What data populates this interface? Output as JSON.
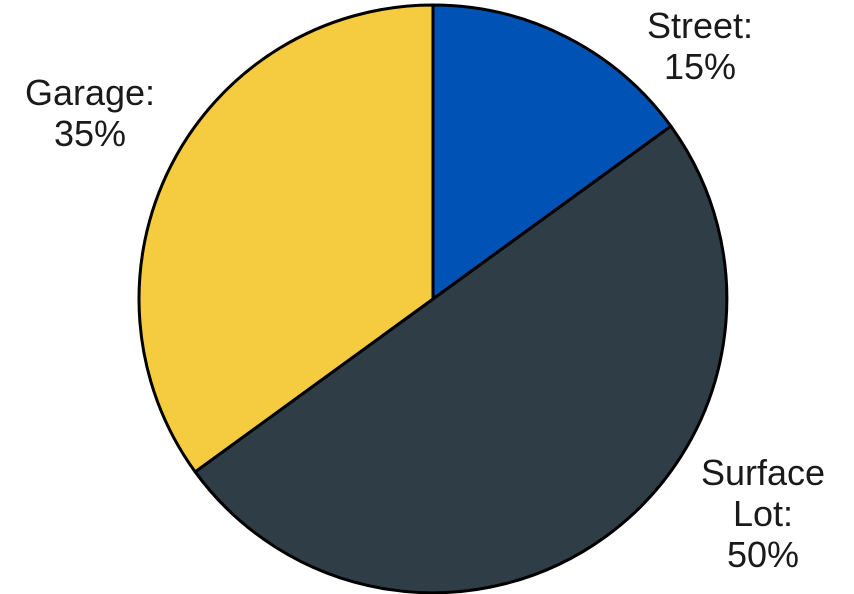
{
  "chart_data": {
    "type": "pie",
    "categories": [
      "Street",
      "Surface Lot",
      "Garage"
    ],
    "values": [
      15,
      50,
      35
    ],
    "unit": "%",
    "colors": [
      "#0052b4",
      "#2e3d46",
      "#f5cb40"
    ],
    "start_angle_deg": 0,
    "direction": "clockwise",
    "labels": [
      {
        "lines": [
          "Street:",
          "15%"
        ]
      },
      {
        "lines": [
          "Surface",
          "Lot:",
          "50%"
        ]
      },
      {
        "lines": [
          "Garage:",
          "35%"
        ]
      }
    ]
  }
}
